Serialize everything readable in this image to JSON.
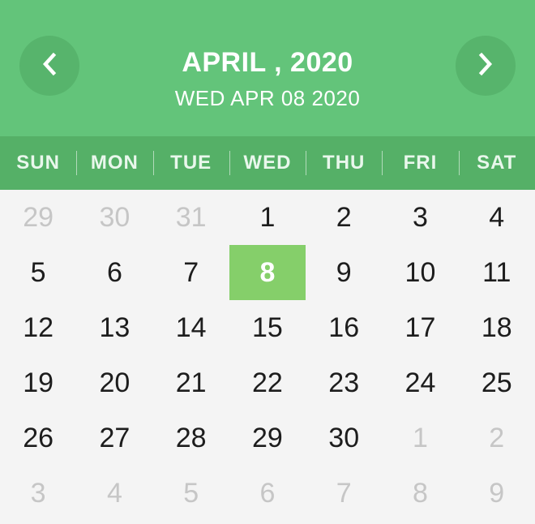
{
  "header": {
    "title": "APRIL , 2020",
    "subtitle": "WED APR 08 2020",
    "prev_icon": "chevron-left-icon",
    "next_icon": "chevron-right-icon"
  },
  "weekdays": [
    "SUN",
    "MON",
    "TUE",
    "WED",
    "THU",
    "FRI",
    "SAT"
  ],
  "weeks": [
    [
      {
        "d": "29",
        "muted": true
      },
      {
        "d": "30",
        "muted": true
      },
      {
        "d": "31",
        "muted": true
      },
      {
        "d": "1"
      },
      {
        "d": "2"
      },
      {
        "d": "3"
      },
      {
        "d": "4"
      }
    ],
    [
      {
        "d": "5"
      },
      {
        "d": "6"
      },
      {
        "d": "7"
      },
      {
        "d": "8",
        "selected": true
      },
      {
        "d": "9"
      },
      {
        "d": "10"
      },
      {
        "d": "11"
      }
    ],
    [
      {
        "d": "12"
      },
      {
        "d": "13"
      },
      {
        "d": "14"
      },
      {
        "d": "15"
      },
      {
        "d": "16"
      },
      {
        "d": "17"
      },
      {
        "d": "18"
      }
    ],
    [
      {
        "d": "19"
      },
      {
        "d": "20"
      },
      {
        "d": "21"
      },
      {
        "d": "22"
      },
      {
        "d": "23"
      },
      {
        "d": "24"
      },
      {
        "d": "25"
      }
    ],
    [
      {
        "d": "26"
      },
      {
        "d": "27"
      },
      {
        "d": "28"
      },
      {
        "d": "29"
      },
      {
        "d": "30"
      },
      {
        "d": "1",
        "muted": true
      },
      {
        "d": "2",
        "muted": true
      }
    ],
    [
      {
        "d": "3",
        "muted": true
      },
      {
        "d": "4",
        "muted": true
      },
      {
        "d": "5",
        "muted": true
      },
      {
        "d": "6",
        "muted": true
      },
      {
        "d": "7",
        "muted": true
      },
      {
        "d": "8",
        "muted": true
      },
      {
        "d": "9",
        "muted": true
      }
    ]
  ],
  "colors": {
    "header_bg": "#63c47a",
    "weekbar_bg": "#55b067",
    "selected_bg": "#85cf6a",
    "muted_text": "#c6c6c6"
  }
}
